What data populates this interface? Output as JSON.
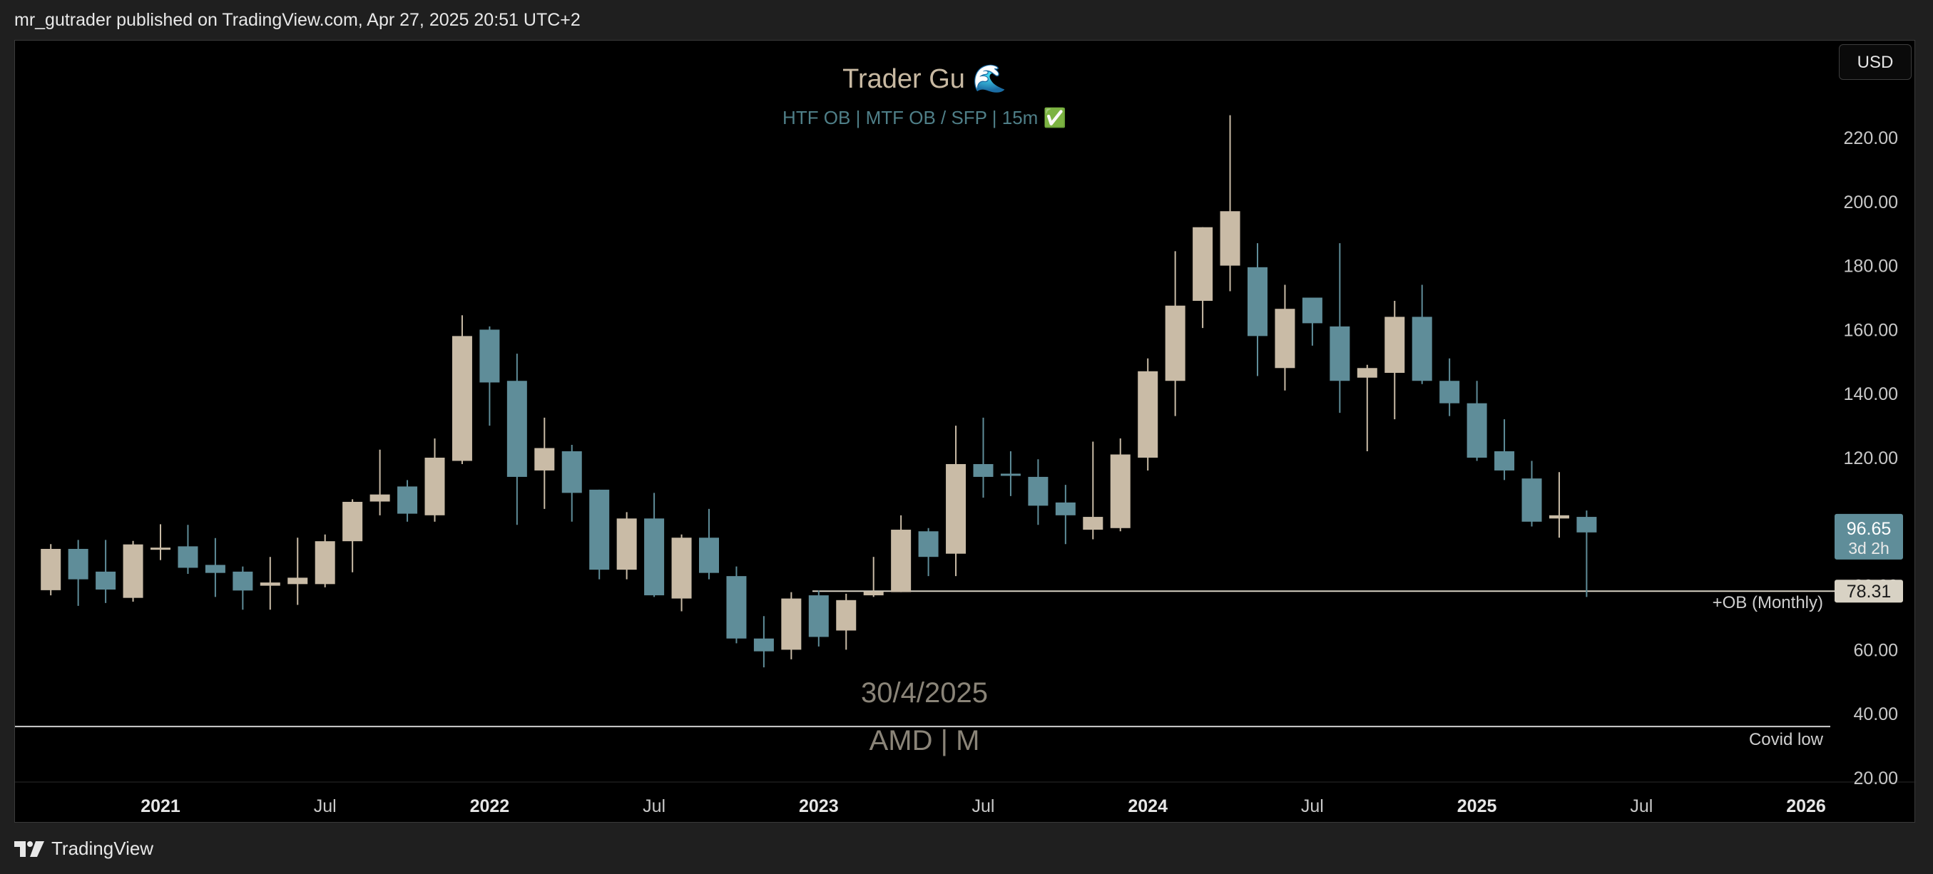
{
  "header": {
    "published_text": "mr_gutrader published on TradingView.com, Apr 27, 2025 20:51 UTC+2"
  },
  "toolbar": {
    "currency_button": "USD"
  },
  "footer": {
    "brand": "TradingView",
    "logo_icon": "tradingview-logo-icon"
  },
  "colors": {
    "background": "#000000",
    "bull": "#c9bba6",
    "bear": "#5f8d99",
    "ob_line": "#d8d2c4",
    "grid_text": "#c8c8c8",
    "title_text": "#c8b9a2",
    "subtitle_text": "#4f7f88"
  },
  "chart_data": {
    "type": "candlestick",
    "title": "Trader Gu 🌊",
    "subtitle": "HTF OB  |  MTF OB / SFP  |  15m ✅",
    "watermark_date": "30/4/2025",
    "watermark_symbol": "AMD | M",
    "interval": "M",
    "y_axis": {
      "min": 20,
      "max": 220,
      "ticks": [
        "220.00",
        "200.00",
        "180.00",
        "160.00",
        "140.00",
        "120.00",
        "100.00",
        "80.00",
        "60.00",
        "40.00",
        "20.00"
      ],
      "tick_values": [
        220,
        200,
        180,
        160,
        140,
        120,
        100,
        80,
        60,
        40,
        20
      ]
    },
    "x_axis": {
      "labels": [
        "2021",
        "Jul",
        "2022",
        "Jul",
        "2023",
        "Jul",
        "2024",
        "Jul",
        "2025",
        "Jul",
        "2026"
      ],
      "label_months": [
        12,
        18,
        24,
        30,
        36,
        42,
        48,
        54,
        60,
        66,
        72
      ],
      "start_month_index": 8,
      "end_month_index": 74
    },
    "candles": [
      {
        "t": "2020-09",
        "o": 78.6,
        "h": 93.0,
        "l": 77.0,
        "c": 91.5
      },
      {
        "t": "2020-10",
        "o": 91.5,
        "h": 94.3,
        "l": 73.7,
        "c": 82.0
      },
      {
        "t": "2020-11",
        "o": 84.4,
        "h": 94.3,
        "l": 74.6,
        "c": 78.8
      },
      {
        "t": "2020-12",
        "o": 76.2,
        "h": 94.0,
        "l": 75.0,
        "c": 92.9
      },
      {
        "t": "2021-01",
        "o": 91.7,
        "h": 99.2,
        "l": 88.0,
        "c": 91.9
      },
      {
        "t": "2021-02",
        "o": 92.3,
        "h": 99.0,
        "l": 83.7,
        "c": 85.6
      },
      {
        "t": "2021-03",
        "o": 86.5,
        "h": 94.9,
        "l": 76.5,
        "c": 84.0
      },
      {
        "t": "2021-04",
        "o": 84.4,
        "h": 86.0,
        "l": 72.5,
        "c": 78.5
      },
      {
        "t": "2021-05",
        "o": 80.0,
        "h": 89.0,
        "l": 72.5,
        "c": 81.0
      },
      {
        "t": "2021-06",
        "o": 80.5,
        "h": 95.0,
        "l": 74.0,
        "c": 82.5
      },
      {
        "t": "2021-07",
        "o": 80.5,
        "h": 96.0,
        "l": 79.5,
        "c": 93.9
      },
      {
        "t": "2021-08",
        "o": 93.9,
        "h": 107.0,
        "l": 84.2,
        "c": 106.2
      },
      {
        "t": "2021-09",
        "o": 106.3,
        "h": 122.5,
        "l": 102.0,
        "c": 108.5
      },
      {
        "t": "2021-10",
        "o": 111.0,
        "h": 113.0,
        "l": 100.0,
        "c": 102.5
      },
      {
        "t": "2021-11",
        "o": 102.0,
        "h": 126.0,
        "l": 100.0,
        "c": 120.0
      },
      {
        "t": "2021-12",
        "o": 119.0,
        "h": 164.5,
        "l": 118.0,
        "c": 158.0
      },
      {
        "t": "2022-01",
        "o": 160.0,
        "h": 161.0,
        "l": 130.0,
        "c": 143.5
      },
      {
        "t": "2022-02",
        "o": 144.0,
        "h": 152.5,
        "l": 99.0,
        "c": 114.0
      },
      {
        "t": "2022-03",
        "o": 116.0,
        "h": 132.5,
        "l": 104.0,
        "c": 123.0
      },
      {
        "t": "2022-04",
        "o": 122.0,
        "h": 124.0,
        "l": 100.0,
        "c": 109.0
      },
      {
        "t": "2022-05",
        "o": 110.0,
        "h": 110.0,
        "l": 82.0,
        "c": 85.0
      },
      {
        "t": "2022-06",
        "o": 85.0,
        "h": 103.0,
        "l": 82.0,
        "c": 101.0
      },
      {
        "t": "2022-07",
        "o": 101.0,
        "h": 109.0,
        "l": 76.5,
        "c": 77.0
      },
      {
        "t": "2022-08",
        "o": 76.0,
        "h": 96.0,
        "l": 72.0,
        "c": 95.0
      },
      {
        "t": "2022-09",
        "o": 95.0,
        "h": 104.0,
        "l": 82.0,
        "c": 84.0
      },
      {
        "t": "2022-10",
        "o": 83.0,
        "h": 86.0,
        "l": 62.0,
        "c": 63.5
      },
      {
        "t": "2022-11",
        "o": 63.5,
        "h": 70.5,
        "l": 54.5,
        "c": 59.5
      },
      {
        "t": "2022-12",
        "o": 60.0,
        "h": 78.0,
        "l": 57.0,
        "c": 76.0
      },
      {
        "t": "2023-01",
        "o": 77.0,
        "h": 78.5,
        "l": 61.0,
        "c": 64.0
      },
      {
        "t": "2023-02",
        "o": 66.0,
        "h": 77.5,
        "l": 60.0,
        "c": 75.5
      },
      {
        "t": "2023-03",
        "o": 77.0,
        "h": 89.0,
        "l": 76.5,
        "c": 78.2
      },
      {
        "t": "2023-04",
        "o": 78.0,
        "h": 102.0,
        "l": 78.0,
        "c": 97.5
      },
      {
        "t": "2023-05",
        "o": 97.0,
        "h": 98.0,
        "l": 83.0,
        "c": 89.0
      },
      {
        "t": "2023-06",
        "o": 90.0,
        "h": 130.0,
        "l": 83.0,
        "c": 118.0
      },
      {
        "t": "2023-07",
        "o": 118.0,
        "h": 132.5,
        "l": 107.5,
        "c": 114.0
      },
      {
        "t": "2023-08",
        "o": 115.0,
        "h": 122.0,
        "l": 108.0,
        "c": 114.5
      },
      {
        "t": "2023-09",
        "o": 114.0,
        "h": 119.5,
        "l": 99.0,
        "c": 105.0
      },
      {
        "t": "2023-10",
        "o": 106.0,
        "h": 111.5,
        "l": 93.0,
        "c": 102.0
      },
      {
        "t": "2023-11",
        "o": 97.5,
        "h": 125.0,
        "l": 94.5,
        "c": 101.5
      },
      {
        "t": "2023-12",
        "o": 98.0,
        "h": 126.0,
        "l": 97.0,
        "c": 121.0
      },
      {
        "t": "2024-01",
        "o": 120.0,
        "h": 151.0,
        "l": 116.0,
        "c": 147.0
      },
      {
        "t": "2024-02",
        "o": 144.0,
        "h": 184.5,
        "l": 133.0,
        "c": 167.5
      },
      {
        "t": "2024-03",
        "o": 169.0,
        "h": 192.0,
        "l": 160.5,
        "c": 192.0
      },
      {
        "t": "2024-04",
        "o": 180.0,
        "h": 227.0,
        "l": 172.0,
        "c": 197.0
      },
      {
        "t": "2024-05",
        "o": 179.5,
        "h": 187.0,
        "l": 145.5,
        "c": 158.0
      },
      {
        "t": "2024-06",
        "o": 148.0,
        "h": 174.0,
        "l": 141.0,
        "c": 166.5
      },
      {
        "t": "2024-07",
        "o": 170.0,
        "h": 170.0,
        "l": 155.0,
        "c": 162.0
      },
      {
        "t": "2024-08",
        "o": 161.0,
        "h": 187.0,
        "l": 134.0,
        "c": 144.0
      },
      {
        "t": "2024-09",
        "o": 145.0,
        "h": 149.0,
        "l": 122.0,
        "c": 148.0
      },
      {
        "t": "2024-10",
        "o": 146.5,
        "h": 169.0,
        "l": 132.0,
        "c": 164.0
      },
      {
        "t": "2024-11",
        "o": 164.0,
        "h": 174.0,
        "l": 143.0,
        "c": 144.0
      },
      {
        "t": "2024-12",
        "o": 144.0,
        "h": 151.0,
        "l": 133.0,
        "c": 137.0
      },
      {
        "t": "2025-01",
        "o": 137.0,
        "h": 144.0,
        "l": 119.0,
        "c": 120.0
      },
      {
        "t": "2025-02",
        "o": 122.0,
        "h": 132.0,
        "l": 113.0,
        "c": 116.0
      },
      {
        "t": "2025-03",
        "o": 113.5,
        "h": 119.0,
        "l": 98.5,
        "c": 100.0
      },
      {
        "t": "2025-04",
        "o": 101.0,
        "h": 115.5,
        "l": 95.0,
        "c": 102.0
      },
      {
        "t": "2025-05",
        "o": 101.5,
        "h": 103.5,
        "l": 76.5,
        "c": 96.65
      }
    ],
    "levels": [
      {
        "name": "+OB (Monthly)",
        "value": 78.31,
        "label": "+OB (Monthly)"
      },
      {
        "name": "Covid low",
        "value": 36.0,
        "label": "Covid low"
      }
    ],
    "price_badges": {
      "last_price": "96.65",
      "countdown": "3d 2h",
      "ob_price": "78.31"
    },
    "grid": false,
    "legend": "none"
  }
}
